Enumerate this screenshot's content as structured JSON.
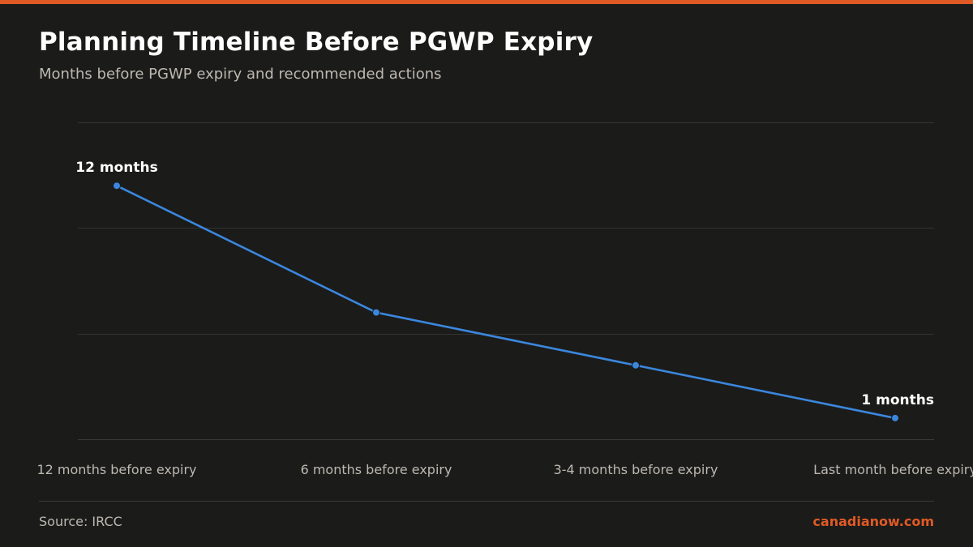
{
  "title": "Planning Timeline Before PGWP Expiry",
  "subtitle": "Months before PGWP expiry and recommended actions",
  "footer": {
    "source": "Source: IRCC",
    "brand": "canadianow.com"
  },
  "colors": {
    "accent": "#e05a25",
    "line": "#3b87dd",
    "background": "#1b1b1a"
  },
  "chart_data": {
    "type": "line",
    "title": "Planning Timeline Before PGWP Expiry",
    "subtitle": "Months before PGWP expiry and recommended actions",
    "categories": [
      "12 months before expiry",
      "6 months before expiry",
      "3-4 months before expiry",
      "Last month before expiry"
    ],
    "series": [
      {
        "values": [
          12,
          6,
          3.5,
          1
        ]
      }
    ],
    "data_labels": [
      {
        "index": 0,
        "text": "12 months"
      },
      {
        "index": 3,
        "text": "1 months"
      }
    ],
    "ylim": [
      0,
      15
    ],
    "y_gridlines": [
      0,
      5,
      10,
      15
    ],
    "grid": true,
    "y_tick_labels_shown": false,
    "legend": "none"
  }
}
